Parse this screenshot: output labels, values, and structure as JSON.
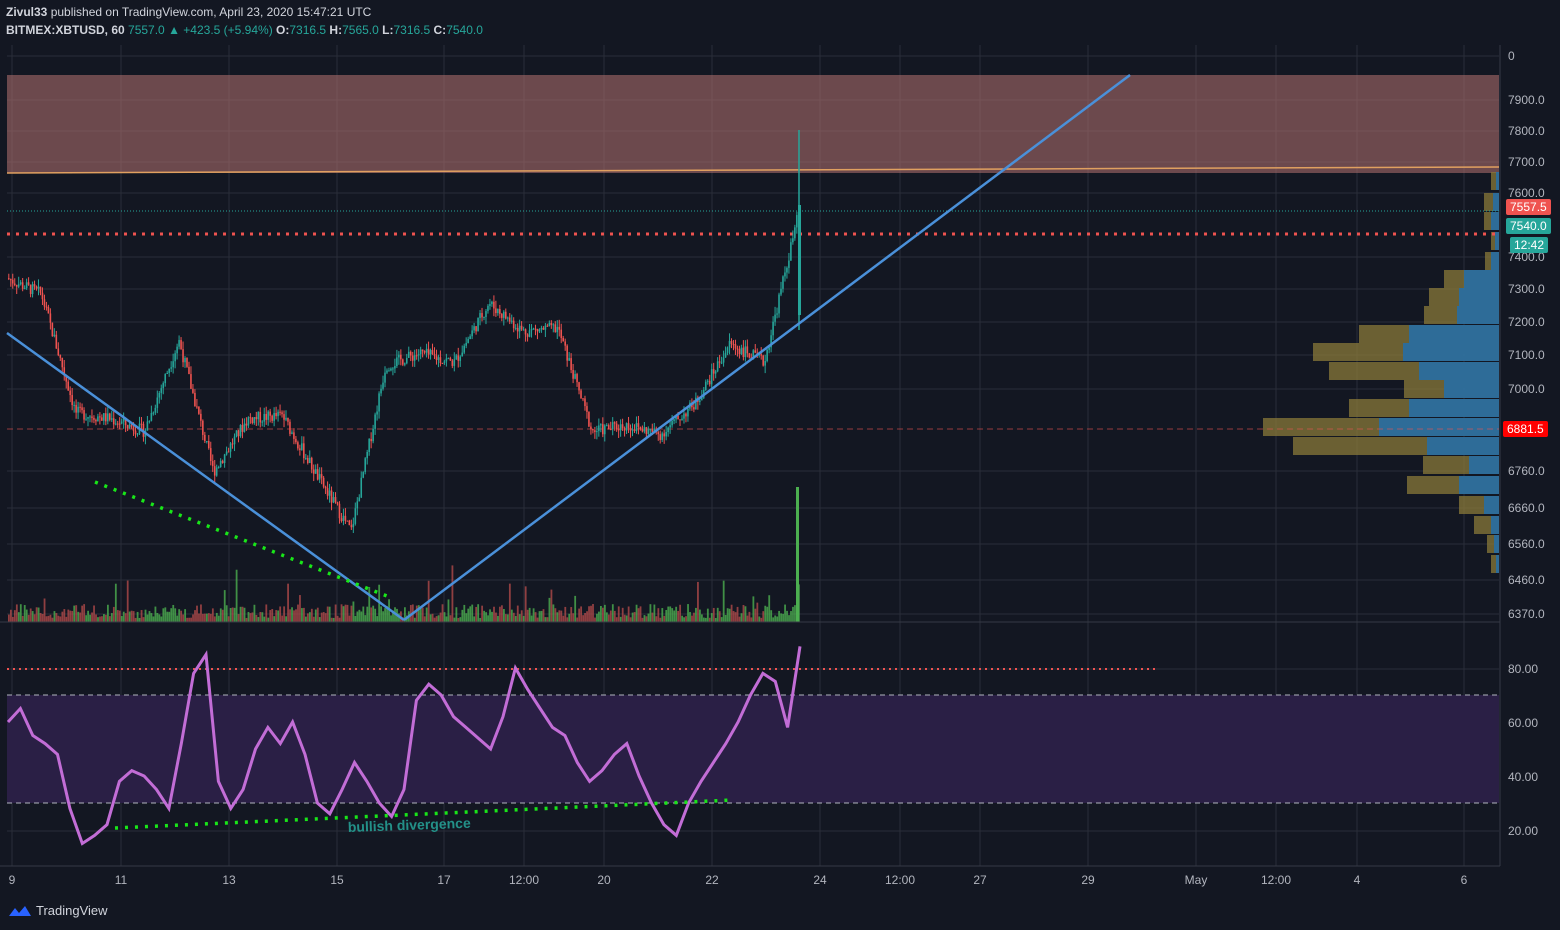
{
  "header": {
    "author": "Zivul33",
    "published_text": "published on TradingView.com, April 23, 2020 15:47:21 UTC",
    "symbol": "BITMEX:XBTUSD, 60",
    "last": "7557.0",
    "change": "▲ +423.5 (+5.94%)",
    "o_label": "O:",
    "o_val": "7316.5",
    "h_label": "H:",
    "h_val": "7565.0",
    "l_label": "L:",
    "l_val": "7316.5",
    "c_label": "C:",
    "c_val": "7540.0"
  },
  "price_tags": {
    "tag1": "7557.5",
    "tag2": "7540.0",
    "tag3": "12:42",
    "tag4": "6881.5"
  },
  "annotation": "bullish divergence",
  "footer": {
    "brand": "TradingView"
  },
  "colors": {
    "background": "#131722",
    "up": "#26a69a",
    "down": "#ef5350",
    "trendline": "#4a90d9",
    "resistance_zone": "#a86a6a",
    "rsi_line": "#c26dd6",
    "rsi_band": "#2a1f45",
    "divergence": "#19e619"
  },
  "chart_data": [
    {
      "type": "candlestick",
      "symbol": "BITMEX:XBTUSD",
      "interval": "60",
      "y_ticks": [
        "0",
        "7900.0",
        "7800.0",
        "7700.0",
        "7600.0",
        "7400.0",
        "7300.0",
        "7200.0",
        "7100.0",
        "7000.0",
        "6760.0",
        "6660.0",
        "6560.0",
        "6460.0",
        "6370.0"
      ],
      "x_ticks": [
        "9",
        "11",
        "13",
        "15",
        "17",
        "12:00",
        "20",
        "22",
        "24",
        "12:00",
        "27",
        "29",
        "May",
        "12:00",
        "4",
        "6"
      ],
      "close_series": [
        {
          "t": "Apr 9",
          "c": 7330
        },
        {
          "t": "Apr 10",
          "c": 7280
        },
        {
          "t": "Apr 10 12h",
          "c": 6900
        },
        {
          "t": "Apr 11",
          "c": 6880
        },
        {
          "t": "Apr 12",
          "c": 6840
        },
        {
          "t": "Apr 12 12h",
          "c": 7130
        },
        {
          "t": "Apr 13",
          "c": 6710
        },
        {
          "t": "Apr 14",
          "c": 6880
        },
        {
          "t": "Apr 15",
          "c": 6890
        },
        {
          "t": "Apr 15 12h",
          "c": 6700
        },
        {
          "t": "Apr 16",
          "c": 6520
        },
        {
          "t": "Apr 16 6h",
          "c": 7050
        },
        {
          "t": "Apr 17",
          "c": 7090
        },
        {
          "t": "Apr 18",
          "c": 7060
        },
        {
          "t": "Apr 18 12h",
          "c": 7250
        },
        {
          "t": "Apr 19",
          "c": 7160
        },
        {
          "t": "Apr 20",
          "c": 7170
        },
        {
          "t": "Apr 20 12h",
          "c": 6840
        },
        {
          "t": "Apr 21",
          "c": 6860
        },
        {
          "t": "Apr 21 12h",
          "c": 6830
        },
        {
          "t": "Apr 22",
          "c": 6930
        },
        {
          "t": "Apr 22 12h",
          "c": 7120
        },
        {
          "t": "Apr 23",
          "c": 7060
        },
        {
          "t": "Apr 23 15h",
          "c": 7540
        }
      ],
      "resistance_zone": [
        7670,
        7980
      ],
      "horizontal_levels": [
        7470,
        6881.5
      ],
      "trendlines": [
        {
          "from": [
            "Apr 9",
            7180
          ],
          "to": [
            "Apr 16",
            6380
          ]
        },
        {
          "from": [
            "Apr 16",
            6380
          ],
          "to": [
            "Apr 29",
            7975
          ]
        }
      ],
      "volume_profile": "right-side horizontal histogram"
    },
    {
      "type": "line",
      "name": "RSI",
      "y_ticks": [
        "80.00",
        "60.00",
        "40.00",
        "20.00"
      ],
      "band": [
        30,
        70
      ],
      "overbought_line": 80,
      "values": [
        60,
        65,
        55,
        52,
        48,
        28,
        15,
        18,
        22,
        38,
        42,
        40,
        35,
        28,
        52,
        78,
        85,
        38,
        28,
        35,
        50,
        58,
        52,
        60,
        48,
        30,
        26,
        35,
        45,
        38,
        30,
        25,
        35,
        68,
        74,
        70,
        62,
        58,
        54,
        50,
        62,
        80,
        72,
        65,
        58,
        55,
        45,
        38,
        42,
        48,
        52,
        40,
        30,
        22,
        18,
        30,
        38,
        45,
        52,
        60,
        70,
        78,
        75,
        58,
        88
      ]
    }
  ]
}
